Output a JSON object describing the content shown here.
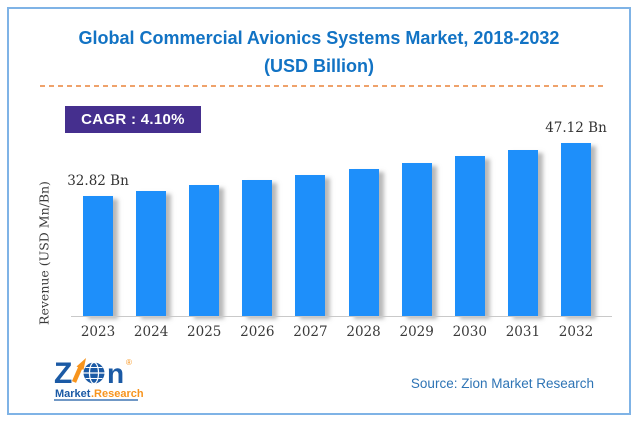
{
  "title": {
    "line1": "Global Commercial Avionics Systems Market, 2018-2032",
    "line2": "(USD Billion)",
    "color": "#1273C4"
  },
  "cagr_badge": {
    "label": "CAGR : 4.10%",
    "bg_color": "#452F8E",
    "text_color": "#FFFFFF"
  },
  "chart_data": {
    "type": "bar",
    "title": "Global Commercial Avionics Systems Market, 2018-2032 (USD Billion)",
    "categories": [
      "2023",
      "2024",
      "2025",
      "2026",
      "2027",
      "2028",
      "2029",
      "2030",
      "2031",
      "2032"
    ],
    "values": [
      32.82,
      34.17,
      35.57,
      37.02,
      38.54,
      40.12,
      41.77,
      43.48,
      45.26,
      47.12
    ],
    "bar_labels": [
      "32.82 Bn",
      "",
      "",
      "",
      "",
      "",
      "",
      "",
      "",
      "47.12 Bn"
    ],
    "xlabel": "",
    "ylabel": "Revenue (USD Mn/Bn)",
    "ylim": [
      0,
      47.12
    ],
    "grid": false,
    "legend": null,
    "bar_color": "#1E8FFA",
    "cagr": "4.10%"
  },
  "footer": {
    "source": "Source: Zion Market Research"
  },
  "logo": {
    "z": "Z",
    "n": "n",
    "registered": "®",
    "market": "Market",
    "research": ".Research.",
    "blue": "#1B5AA5",
    "orange": "#F7941D"
  }
}
